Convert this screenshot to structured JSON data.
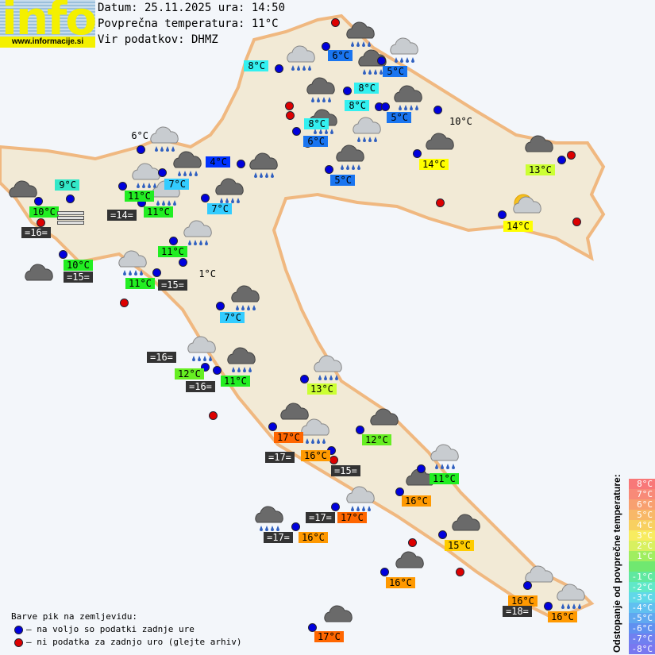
{
  "logo": {
    "word": "info",
    "url": "www.informacije.si"
  },
  "header": {
    "date_line": "Datum: 25.11.2025 ura: 14:50",
    "avg_temp_line": "Povprečna temperatura: 11°C",
    "source_line": "Vir podatkov: DHMZ"
  },
  "temperatures": [
    {
      "text": "8°C",
      "color": "#33f0f0"
    },
    {
      "text": "6°C",
      "color": "#1a75f0"
    },
    {
      "text": "5°C",
      "color": "#1a75f0"
    },
    {
      "text": "8°C",
      "color": "#33f0f0"
    },
    {
      "text": "8°C",
      "color": "#33f0f0"
    },
    {
      "text": "5°C",
      "color": "#1a75f0"
    },
    {
      "text": "8°C",
      "color": "#33f0f0"
    },
    {
      "text": "6°C",
      "color": "#1a75f0"
    },
    {
      "text": "10°C",
      "color": ""
    },
    {
      "text": "14°C",
      "color": "#ffff00"
    },
    {
      "text": "13°C",
      "color": "#ccff33"
    },
    {
      "text": "5°C",
      "color": "#1a75f0"
    },
    {
      "text": "4°C",
      "color": "#0033ff"
    },
    {
      "text": "6°C",
      "color": ""
    },
    {
      "text": "9°C",
      "color": "#33e8c8"
    },
    {
      "text": "7°C",
      "color": "#33ccff"
    },
    {
      "text": "11°C",
      "color": "#22ee22"
    },
    {
      "text": "11°C",
      "color": "#22ee22"
    },
    {
      "text": "7°C",
      "color": "#33ccff"
    },
    {
      "text": "10°C",
      "color": "#22ee22"
    },
    {
      "text": "11°C",
      "color": "#22ee22"
    },
    {
      "text": "10°C",
      "color": "#22ee22"
    },
    {
      "text": "11°C",
      "color": "#22ee22"
    },
    {
      "text": "1°C",
      "color": ""
    },
    {
      "text": "7°C",
      "color": "#33ccff"
    },
    {
      "text": "12°C",
      "color": "#66ee22"
    },
    {
      "text": "11°C",
      "color": "#22ee22"
    },
    {
      "text": "13°C",
      "color": "#ccff33"
    },
    {
      "text": "17°C",
      "color": "#ff6600"
    },
    {
      "text": "12°C",
      "color": "#66ee22"
    },
    {
      "text": "16°C",
      "color": "#ff9900"
    },
    {
      "text": "11°C",
      "color": "#22ee22"
    },
    {
      "text": "16°C",
      "color": "#ff9900"
    },
    {
      "text": "17°C",
      "color": "#ff6600"
    },
    {
      "text": "16°C",
      "color": "#ff9900"
    },
    {
      "text": "15°C",
      "color": "#ffcc00"
    },
    {
      "text": "14°C",
      "color": "#ffff00"
    },
    {
      "text": "16°C",
      "color": "#ff9900"
    },
    {
      "text": "16°C",
      "color": "#ff9900"
    },
    {
      "text": "16°C",
      "color": "#ff9900"
    },
    {
      "text": "17°C",
      "color": "#ff6600"
    }
  ],
  "sea_temperatures": [
    "=16=",
    "=14=",
    "=15=",
    "=15=",
    "=16=",
    "=16=",
    "=17=",
    "=15=",
    "=17=",
    "=17=",
    "=18="
  ],
  "dot_colors": {
    "available": "#0000dd",
    "missing": "#dd0000"
  },
  "legend": {
    "title": "Barve pik na zemljevidu:",
    "available": "– na voljo so podatki zadnje ure",
    "missing": "– ni podatka za zadnjo uro (glejte arhiv)"
  },
  "deviation_scale": {
    "title": "Odstopanje od povprečne temperature:",
    "steps": [
      {
        "label": "8°C",
        "color": "#f87878"
      },
      {
        "label": "7°C",
        "color": "#f88a78"
      },
      {
        "label": "6°C",
        "color": "#f8a070"
      },
      {
        "label": "5°C",
        "color": "#f8b868"
      },
      {
        "label": "4°C",
        "color": "#f8d060"
      },
      {
        "label": "3°C",
        "color": "#f8ec60"
      },
      {
        "label": "2°C",
        "color": "#d8f060"
      },
      {
        "label": "1°C",
        "color": "#a0ee60"
      },
      {
        "label": "",
        "color": "#70e870"
      },
      {
        "label": "-1°C",
        "color": "#60e8a0"
      },
      {
        "label": "-2°C",
        "color": "#60e8c8"
      },
      {
        "label": "-3°C",
        "color": "#60d8e8"
      },
      {
        "label": "-4°C",
        "color": "#60c0f0"
      },
      {
        "label": "-5°C",
        "color": "#60a8f0"
      },
      {
        "label": "-6°C",
        "color": "#6090f0"
      },
      {
        "label": "-7°C",
        "color": "#7080f0"
      },
      {
        "label": "-8°C",
        "color": "#7878f0"
      }
    ]
  }
}
